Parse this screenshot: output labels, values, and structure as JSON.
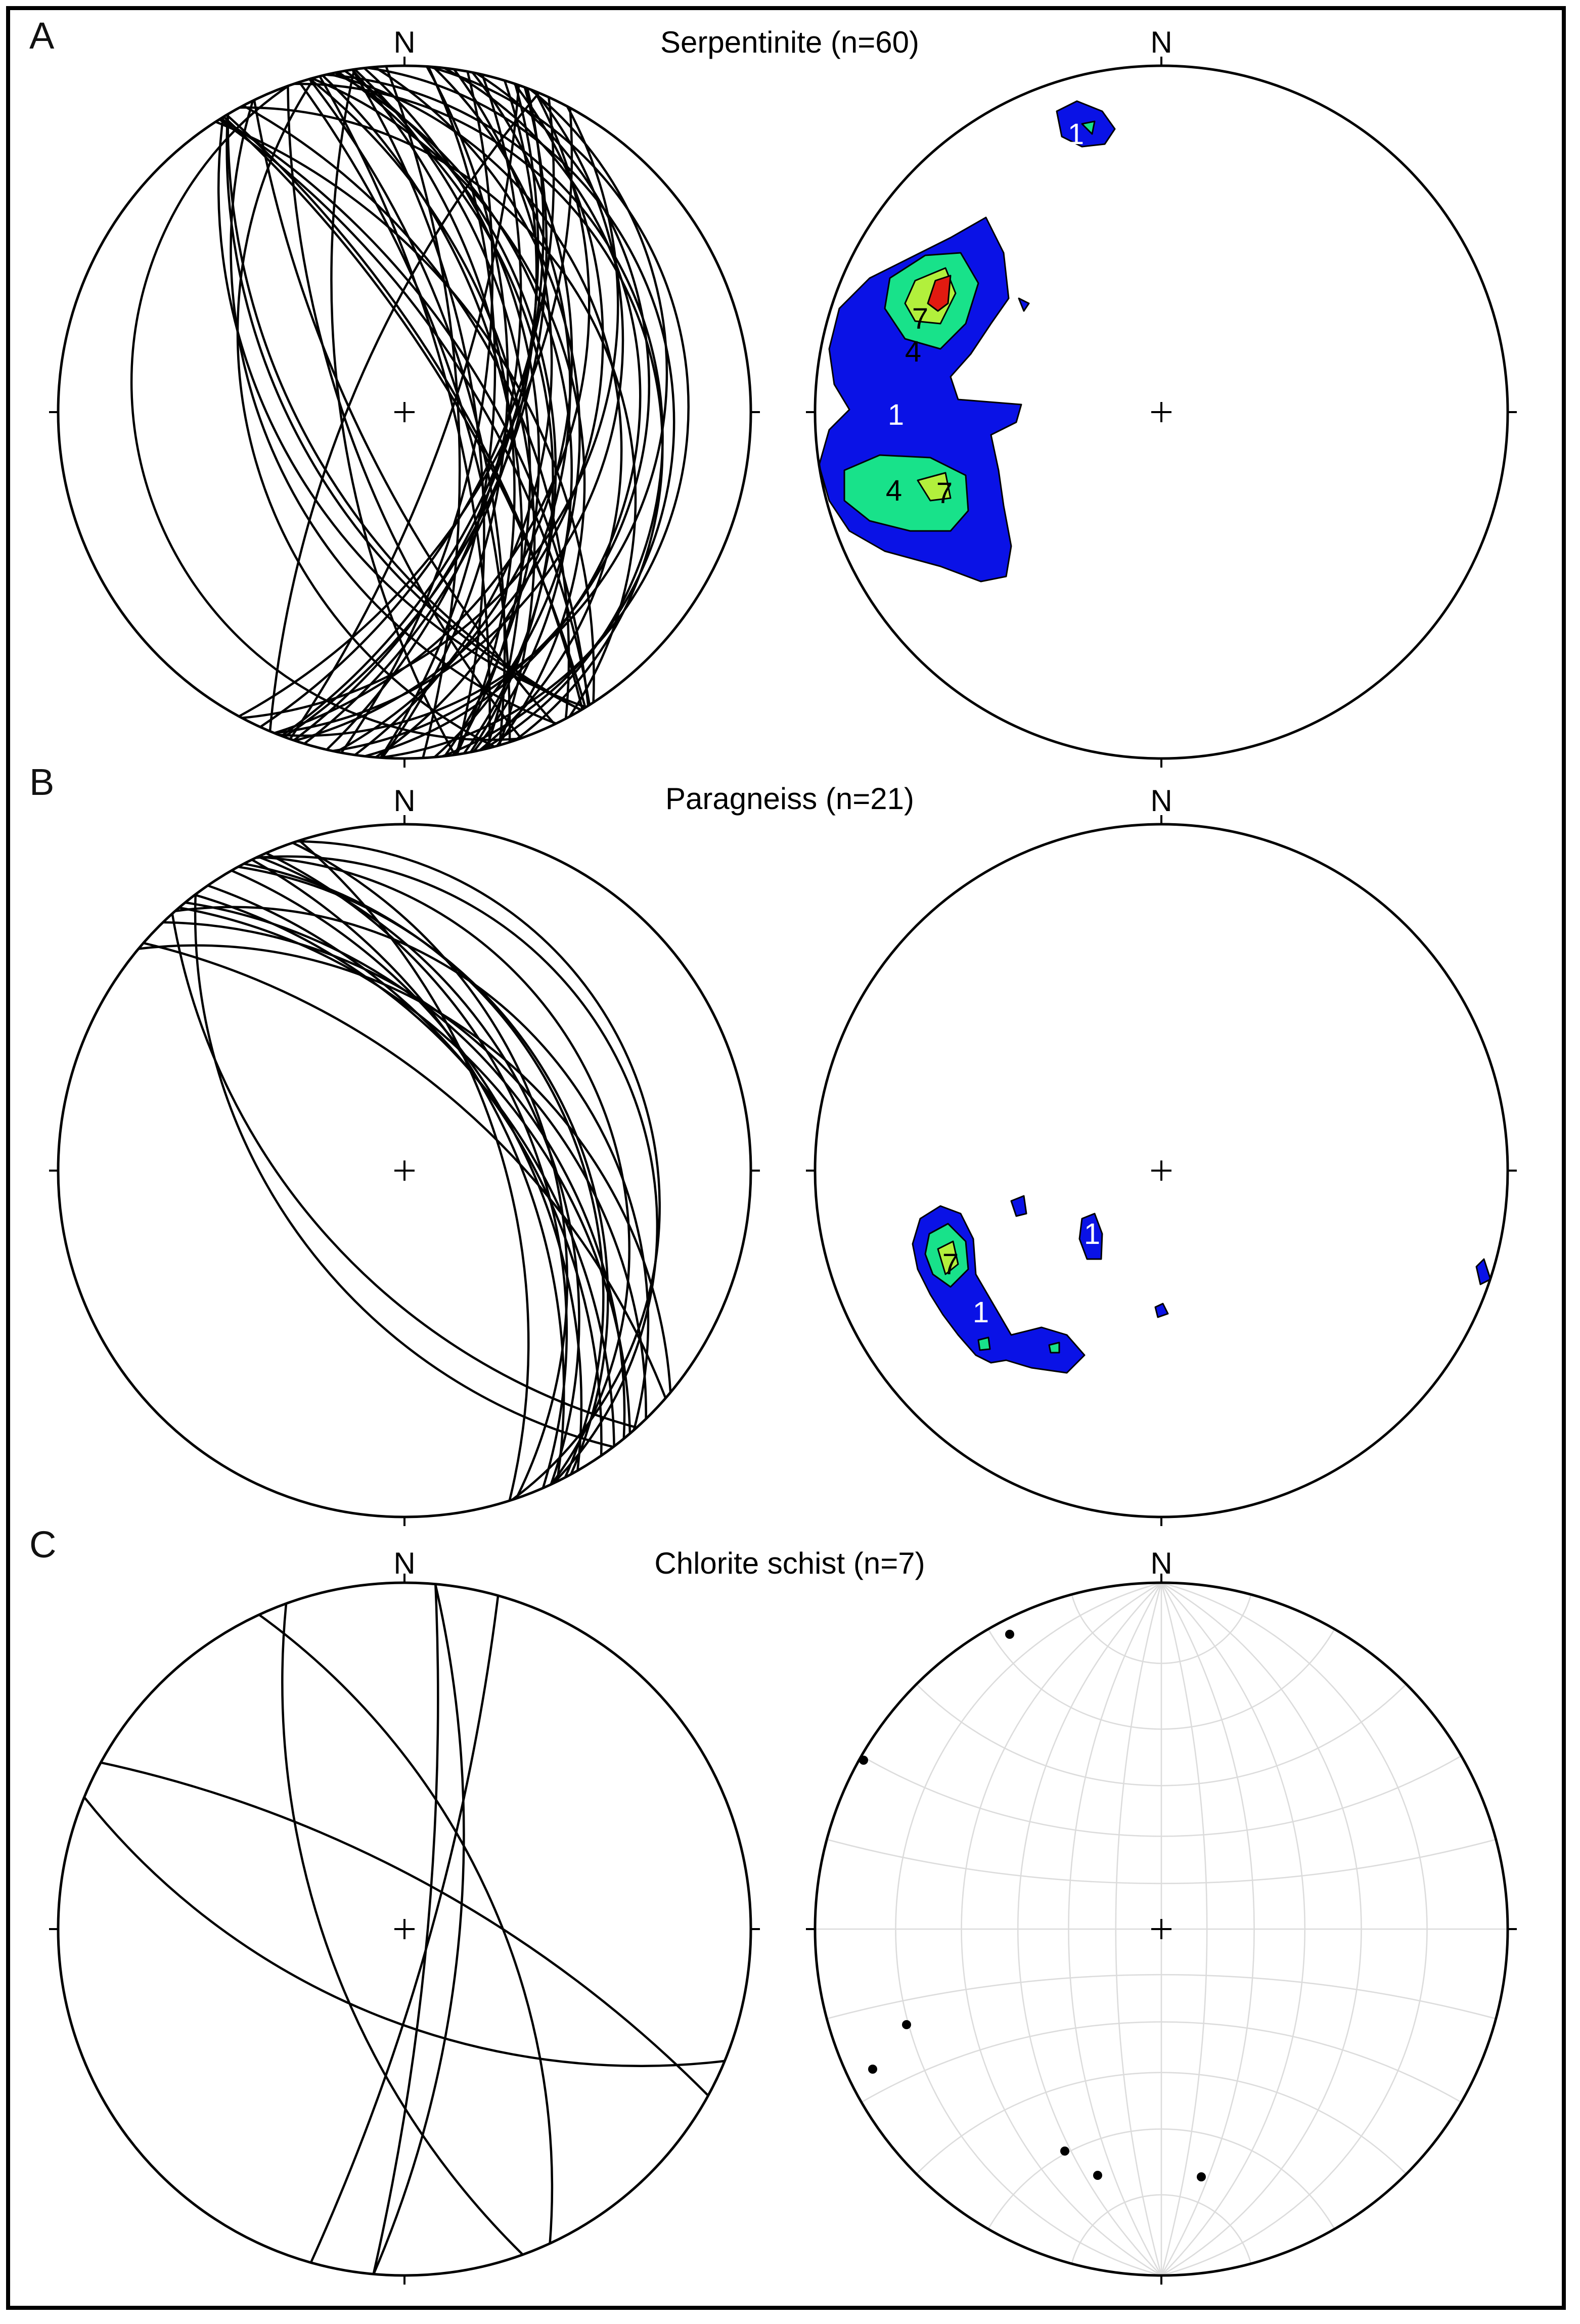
{
  "figure": {
    "panels": [
      {
        "id": "A",
        "label": "A",
        "title": "Serpentinite (n=60)",
        "north_label": "N",
        "contour_labels": [
          "1",
          "4",
          "7",
          "4",
          "7",
          "1"
        ]
      },
      {
        "id": "B",
        "label": "B",
        "title": "Paragneiss (n=21)",
        "north_label": "N",
        "contour_labels": [
          "7",
          "1",
          "1"
        ]
      },
      {
        "id": "C",
        "label": "C",
        "title": "Chlorite schist (n=7)",
        "north_label": "N",
        "contour_labels": []
      }
    ],
    "colors": {
      "contour_1": "#0a12e6",
      "contour_4": "#18e28a",
      "contour_7": "#b2f03c",
      "contour_max": "#e11a10",
      "net": "#dcdcdc",
      "lines": "#000000"
    }
  }
}
